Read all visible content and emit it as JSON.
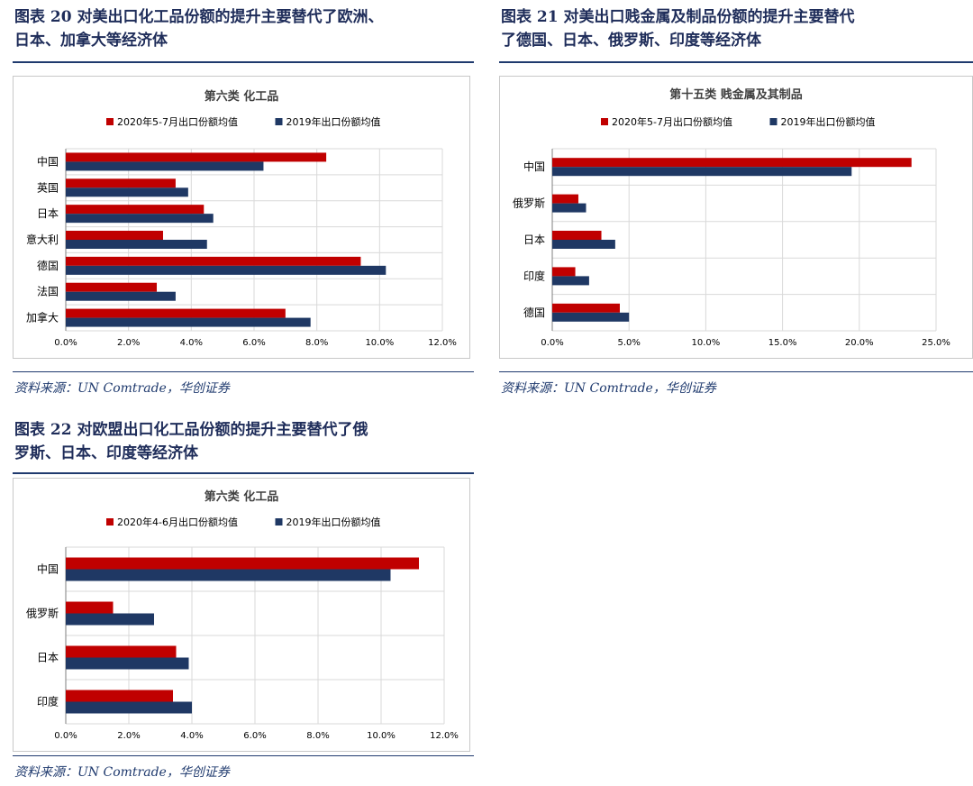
{
  "colors": {
    "series_2020": "#c00000",
    "series_2019": "#1f3864",
    "heading": "#1f2d5a"
  },
  "figures": [
    {
      "title": "图表 20   对美出口化工品份额的提升主要替代了欧洲、\n日本、加拿大等经济体",
      "source": "资料来源：UN Comtrade，华创证券"
    },
    {
      "title": "图表 21   对美出口贱金属及制品份额的提升主要替代\n了德国、日本、俄罗斯、印度等经济体",
      "source": "资料来源：UN Comtrade，华创证券"
    },
    {
      "title": "图表 22   对欧盟出口化工品份额的提升主要替代了俄\n罗斯、日本、印度等经济体",
      "source": "资料来源：UN Comtrade，华创证券"
    }
  ],
  "chart_data": [
    {
      "type": "bar",
      "orientation": "horizontal",
      "title": "第六类 化工品",
      "categories": [
        "中国",
        "英国",
        "日本",
        "意大利",
        "德国",
        "法国",
        "加拿大"
      ],
      "series": [
        {
          "name": "2020年5-7月出口份额均值",
          "values": [
            8.3,
            3.5,
            4.4,
            3.1,
            9.4,
            2.9,
            7.0
          ]
        },
        {
          "name": "2019年出口份额均值",
          "values": [
            6.3,
            3.9,
            4.7,
            4.5,
            10.2,
            3.5,
            7.8
          ]
        }
      ],
      "xlim": [
        0,
        12
      ],
      "xticks": [
        "0.0%",
        "2.0%",
        "4.0%",
        "6.0%",
        "8.0%",
        "10.0%",
        "12.0%"
      ],
      "legend": "top",
      "grid": true
    },
    {
      "type": "bar",
      "orientation": "horizontal",
      "title": "第十五类 贱金属及其制品",
      "categories": [
        "中国",
        "俄罗斯",
        "日本",
        "印度",
        "德国"
      ],
      "series": [
        {
          "name": "2020年5-7月出口份额均值",
          "values": [
            23.4,
            1.7,
            3.2,
            1.5,
            4.4
          ]
        },
        {
          "name": "2019年出口份额均值",
          "values": [
            19.5,
            2.2,
            4.1,
            2.4,
            5.0
          ]
        }
      ],
      "xlim": [
        0,
        25
      ],
      "xticks": [
        "0.0%",
        "5.0%",
        "10.0%",
        "15.0%",
        "20.0%",
        "25.0%"
      ],
      "legend": "top",
      "grid": true
    },
    {
      "type": "bar",
      "orientation": "horizontal",
      "title": "第六类 化工品",
      "categories": [
        "中国",
        "俄罗斯",
        "日本",
        "印度"
      ],
      "series": [
        {
          "name": "2020年4-6月出口份额均值",
          "values": [
            11.2,
            1.5,
            3.5,
            3.4
          ]
        },
        {
          "name": "2019年出口份额均值",
          "values": [
            10.3,
            2.8,
            3.9,
            4.0
          ]
        }
      ],
      "xlim": [
        0,
        12
      ],
      "xticks": [
        "0.0%",
        "2.0%",
        "4.0%",
        "6.0%",
        "8.0%",
        "10.0%",
        "12.0%"
      ],
      "legend": "top",
      "grid": true
    }
  ]
}
